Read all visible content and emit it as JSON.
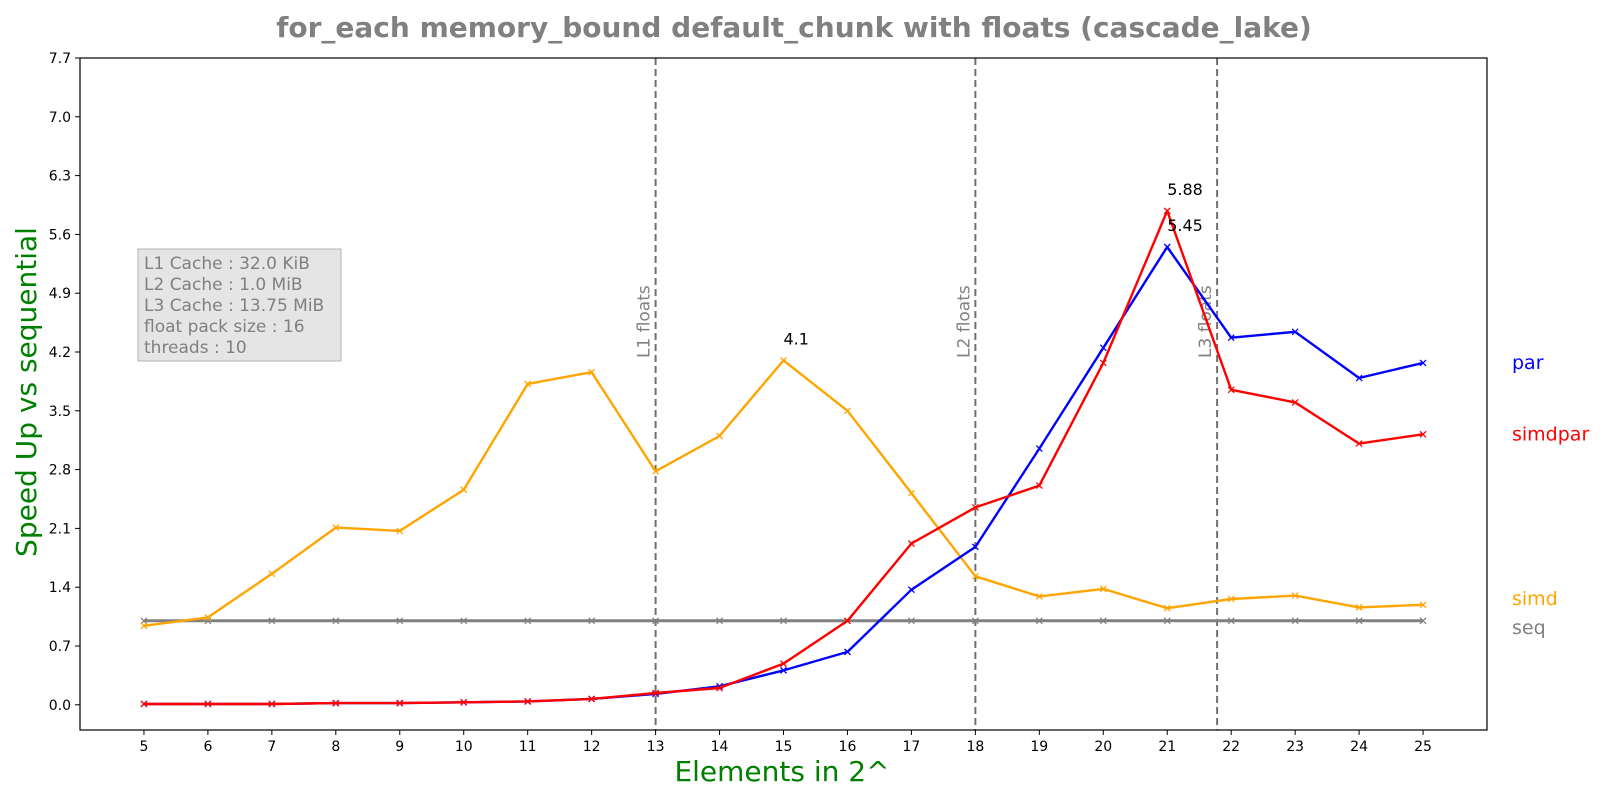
{
  "chart_data": {
    "type": "line",
    "title": "for_each memory_bound default_chunk with floats  (cascade_lake)",
    "xlabel": "Elements in 2^",
    "ylabel": "Speed Up vs sequential",
    "x": [
      5,
      6,
      7,
      8,
      9,
      10,
      11,
      12,
      13,
      14,
      15,
      16,
      17,
      18,
      19,
      20,
      21,
      22,
      23,
      24,
      25
    ],
    "xlim": [
      4,
      26
    ],
    "ylim": [
      -0.3,
      7.7
    ],
    "yticks": [
      "0.0",
      "0.7",
      "1.4",
      "2.1",
      "2.8",
      "3.5",
      "4.2",
      "4.9",
      "5.6",
      "6.3",
      "7.0",
      "7.7"
    ],
    "grid": false,
    "series": [
      {
        "name": "seq",
        "color": "#808080",
        "values": [
          1.0,
          1.0,
          1.0,
          1.0,
          1.0,
          1.0,
          1.0,
          1.0,
          1.0,
          1.0,
          1.0,
          1.0,
          1.0,
          1.0,
          1.0,
          1.0,
          1.0,
          1.0,
          1.0,
          1.0,
          1.0
        ]
      },
      {
        "name": "simd",
        "color": "#FFA500",
        "values": [
          0.94,
          1.04,
          1.56,
          2.11,
          2.07,
          2.56,
          3.82,
          3.96,
          2.78,
          3.2,
          4.1,
          3.5,
          2.52,
          1.53,
          1.29,
          1.38,
          1.15,
          1.26,
          1.3,
          1.16,
          1.19
        ]
      },
      {
        "name": "par",
        "color": "#0000FF",
        "values": [
          0.01,
          0.01,
          0.01,
          0.02,
          0.02,
          0.03,
          0.04,
          0.07,
          0.13,
          0.22,
          0.41,
          0.63,
          1.37,
          1.88,
          3.05,
          4.25,
          5.45,
          4.37,
          4.44,
          3.89,
          4.07
        ]
      },
      {
        "name": "simdpar",
        "color": "#FF0000",
        "values": [
          0.01,
          0.01,
          0.01,
          0.02,
          0.02,
          0.03,
          0.04,
          0.07,
          0.14,
          0.2,
          0.49,
          1.0,
          1.92,
          2.35,
          2.61,
          4.07,
          5.88,
          3.75,
          3.6,
          3.11,
          3.22
        ]
      }
    ],
    "vlines": [
      {
        "x": 13,
        "label": "L1 floats"
      },
      {
        "x": 18,
        "label": "L2 floats"
      },
      {
        "x": 21.78,
        "label": "L3 floats"
      }
    ],
    "annotations": [
      {
        "x": 15,
        "y": 4.1,
        "text": "4.1"
      },
      {
        "x": 21,
        "y": 5.88,
        "text": "5.88"
      },
      {
        "x": 21,
        "y": 5.45,
        "text": "5.45"
      }
    ],
    "info_box": [
      "L1 Cache : 32.0 KiB",
      "L2 Cache : 1.0 MiB",
      "L3 Cache : 13.75 MiB",
      "float pack size : 16",
      "threads : 10"
    ]
  }
}
